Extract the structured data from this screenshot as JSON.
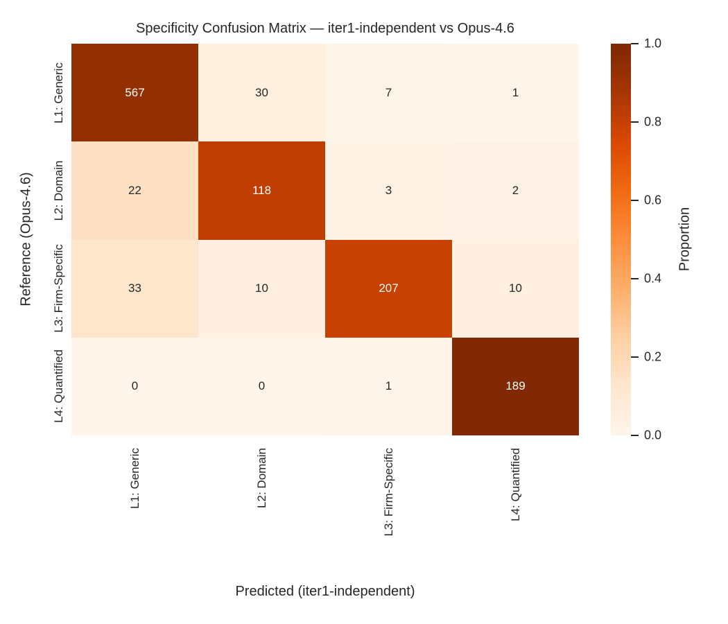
{
  "chart_data": {
    "type": "heatmap",
    "title": "Specificity Confusion Matrix — iter1-independent vs Opus-4.6",
    "xlabel": "Predicted (iter1-independent)",
    "ylabel": "Reference (Opus-4.6)",
    "x_categories": [
      "L1: Generic",
      "L2: Domain",
      "L3: Firm-Specific",
      "L4: Quantified"
    ],
    "y_categories": [
      "L1: Generic",
      "L2: Domain",
      "L3: Firm-Specific",
      "L4: Quantified"
    ],
    "values": [
      [
        567,
        30,
        7,
        1
      ],
      [
        22,
        118,
        3,
        2
      ],
      [
        33,
        10,
        207,
        10
      ],
      [
        0,
        0,
        1,
        189
      ]
    ],
    "row_proportions": [
      [
        0.937,
        0.05,
        0.012,
        0.002
      ],
      [
        0.152,
        0.814,
        0.021,
        0.014
      ],
      [
        0.127,
        0.038,
        0.796,
        0.038
      ],
      [
        0.0,
        0.0,
        0.005,
        0.995
      ]
    ],
    "normalization": "row proportions",
    "colormap": "Oranges",
    "colormap_stops": [
      "#FFF5EB",
      "#FEE6CE",
      "#FDD0A2",
      "#FDAE6B",
      "#FD8D3C",
      "#F16913",
      "#D94801",
      "#A63603",
      "#7F2704"
    ],
    "cell_colors": [
      [
        "#932F03",
        "#FFEFDF",
        "#FFF4E8",
        "#FFF5EA"
      ],
      [
        "#FEE1C5",
        "#BF3F02",
        "#FFF3E6",
        "#FFF3E8"
      ],
      [
        "#FEE6CD",
        "#FFF0E2",
        "#C64102",
        "#FFF0E2"
      ],
      [
        "#FFF5EB",
        "#FFF5EB",
        "#FFF4EA",
        "#812804"
      ]
    ],
    "cell_text_colors": [
      [
        "#FFFFFF",
        "#262626",
        "#262626",
        "#262626"
      ],
      [
        "#262626",
        "#FFFFFF",
        "#262626",
        "#262626"
      ],
      [
        "#262626",
        "#262626",
        "#FFFFFF",
        "#262626"
      ],
      [
        "#262626",
        "#262626",
        "#262626",
        "#FFFFFF"
      ]
    ],
    "colorbar": {
      "label": "Proportion",
      "ticks": [
        "1.0",
        "0.8",
        "0.6",
        "0.4",
        "0.2",
        "0.0"
      ],
      "min": 0.0,
      "max": 1.0
    },
    "text_color": "#262626",
    "background": "#FFFFFF"
  }
}
